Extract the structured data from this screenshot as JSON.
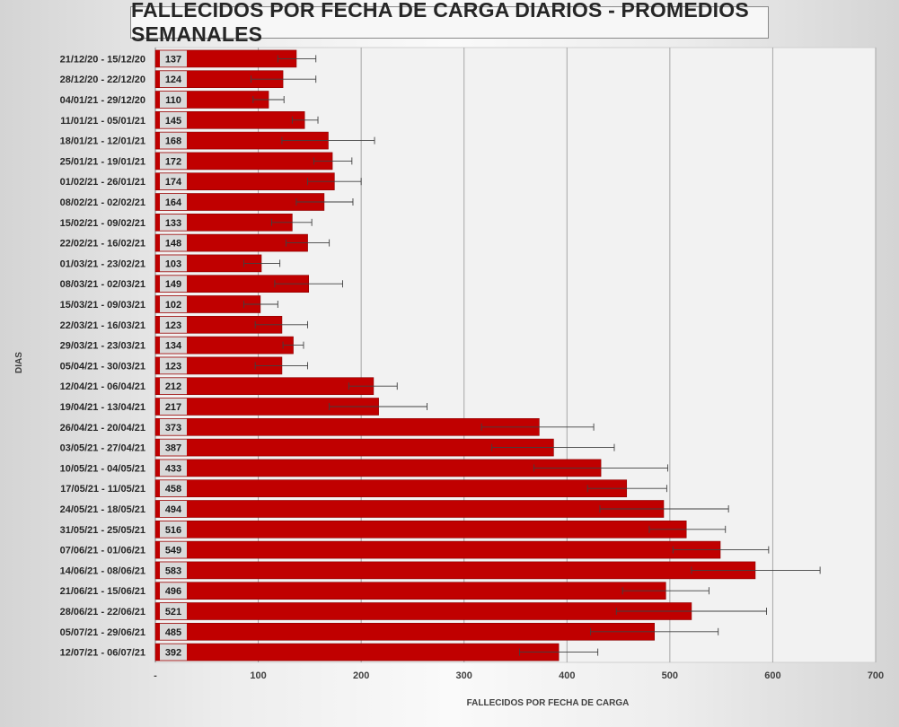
{
  "chart_data": {
    "type": "bar",
    "orientation": "horizontal",
    "title": "FALLECIDOS POR FECHA DE CARGA DIARIOS - PROMEDIOS SEMANALES",
    "xlabel": "FALLECIDOS POR FECHA DE CARGA",
    "ylabel": "DIAS",
    "xlim": [
      0,
      700
    ],
    "x_ticks": [
      "-",
      "100",
      "200",
      "300",
      "400",
      "500",
      "600",
      "700"
    ],
    "x_tick_values": [
      0,
      100,
      200,
      300,
      400,
      500,
      600,
      700
    ],
    "grid": true,
    "legend": "none",
    "colors": {
      "bar": "#c00000",
      "bar_edge": "#8b0000",
      "label_box": "#d9d9d9",
      "error_bar": "#404040",
      "grid": "#a6a6a6",
      "plot_bg": "#f2f2f2"
    },
    "categories": [
      "21/12/20 - 15/12/20",
      "28/12/20 - 22/12/20",
      "04/01/21 - 29/12/20",
      "11/01/21 - 05/01/21",
      "18/01/21 - 12/01/21",
      "25/01/21 - 19/01/21",
      "01/02/21 - 26/01/21",
      "08/02/21 - 02/02/21",
      "15/02/21 - 09/02/21",
      "22/02/21 - 16/02/21",
      "01/03/21 - 23/02/21",
      "08/03/21 - 02/03/21",
      "15/03/21 - 09/03/21",
      "22/03/21 - 16/03/21",
      "29/03/21 - 23/03/21",
      "05/04/21 - 30/03/21",
      "12/04/21 - 06/04/21",
      "19/04/21 - 13/04/21",
      "26/04/21 - 20/04/21",
      "03/05/21 - 27/04/21",
      "10/05/21 - 04/05/21",
      "17/05/21 - 11/05/21",
      "24/05/21 - 18/05/21",
      "31/05/21 - 25/05/21",
      "07/06/21 - 01/06/21",
      "14/06/21 - 08/06/21",
      "21/06/21 - 15/06/21",
      "28/06/21 - 22/06/21",
      "05/07/21 - 29/06/21",
      "12/07/21 - 06/07/21"
    ],
    "values": [
      137,
      124,
      110,
      145,
      168,
      172,
      174,
      164,
      133,
      148,
      103,
      149,
      102,
      123,
      134,
      123,
      212,
      217,
      373,
      387,
      433,
      458,
      494,
      516,
      549,
      583,
      496,
      521,
      485,
      392
    ],
    "error_bars": [
      [
        119,
        156
      ],
      [
        93,
        156
      ],
      [
        95,
        125
      ],
      [
        133,
        158
      ],
      [
        123,
        213
      ],
      [
        154,
        191
      ],
      [
        148,
        200
      ],
      [
        137,
        192
      ],
      [
        113,
        152
      ],
      [
        127,
        169
      ],
      [
        86,
        121
      ],
      [
        116,
        182
      ],
      [
        86,
        119
      ],
      [
        97,
        148
      ],
      [
        124,
        144
      ],
      [
        97,
        148
      ],
      [
        188,
        235
      ],
      [
        169,
        264
      ],
      [
        317,
        426
      ],
      [
        327,
        446
      ],
      [
        368,
        498
      ],
      [
        420,
        497
      ],
      [
        432,
        557
      ],
      [
        480,
        554
      ],
      [
        503,
        596
      ],
      [
        521,
        646
      ],
      [
        454,
        538
      ],
      [
        448,
        594
      ],
      [
        423,
        547
      ],
      [
        354,
        430
      ]
    ]
  }
}
